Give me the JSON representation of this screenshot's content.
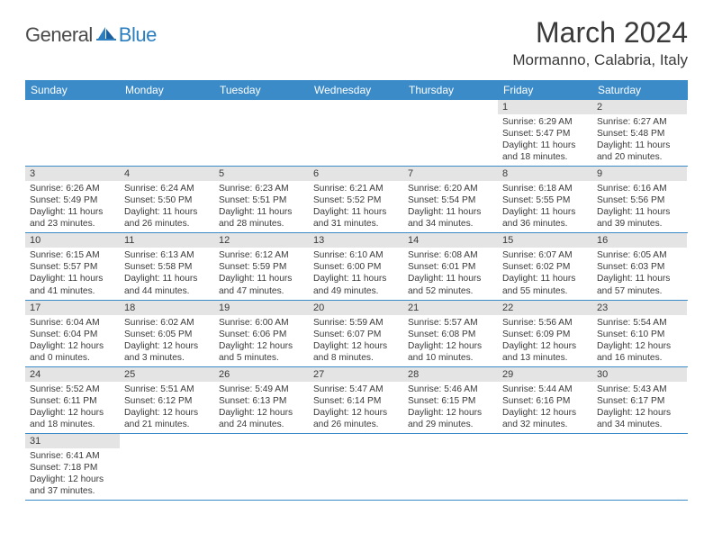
{
  "logo": {
    "general": "General",
    "blue": "Blue"
  },
  "title": "March 2024",
  "location": "Mormanno, Calabria, Italy",
  "colors": {
    "headerBar": "#3b8bc9",
    "headerText": "#ffffff",
    "dayNumBg": "#e4e4e4",
    "bodyText": "#3a3a3a",
    "logoBlue": "#2b7fc0",
    "logoGray": "#4a4a4a"
  },
  "dayNames": [
    "Sunday",
    "Monday",
    "Tuesday",
    "Wednesday",
    "Thursday",
    "Friday",
    "Saturday"
  ],
  "weeks": [
    [
      null,
      null,
      null,
      null,
      null,
      {
        "n": 1,
        "sunrise": "6:29 AM",
        "sunset": "5:47 PM",
        "daylight": "11 hours and 18 minutes."
      },
      {
        "n": 2,
        "sunrise": "6:27 AM",
        "sunset": "5:48 PM",
        "daylight": "11 hours and 20 minutes."
      }
    ],
    [
      {
        "n": 3,
        "sunrise": "6:26 AM",
        "sunset": "5:49 PM",
        "daylight": "11 hours and 23 minutes."
      },
      {
        "n": 4,
        "sunrise": "6:24 AM",
        "sunset": "5:50 PM",
        "daylight": "11 hours and 26 minutes."
      },
      {
        "n": 5,
        "sunrise": "6:23 AM",
        "sunset": "5:51 PM",
        "daylight": "11 hours and 28 minutes."
      },
      {
        "n": 6,
        "sunrise": "6:21 AM",
        "sunset": "5:52 PM",
        "daylight": "11 hours and 31 minutes."
      },
      {
        "n": 7,
        "sunrise": "6:20 AM",
        "sunset": "5:54 PM",
        "daylight": "11 hours and 34 minutes."
      },
      {
        "n": 8,
        "sunrise": "6:18 AM",
        "sunset": "5:55 PM",
        "daylight": "11 hours and 36 minutes."
      },
      {
        "n": 9,
        "sunrise": "6:16 AM",
        "sunset": "5:56 PM",
        "daylight": "11 hours and 39 minutes."
      }
    ],
    [
      {
        "n": 10,
        "sunrise": "6:15 AM",
        "sunset": "5:57 PM",
        "daylight": "11 hours and 41 minutes."
      },
      {
        "n": 11,
        "sunrise": "6:13 AM",
        "sunset": "5:58 PM",
        "daylight": "11 hours and 44 minutes."
      },
      {
        "n": 12,
        "sunrise": "6:12 AM",
        "sunset": "5:59 PM",
        "daylight": "11 hours and 47 minutes."
      },
      {
        "n": 13,
        "sunrise": "6:10 AM",
        "sunset": "6:00 PM",
        "daylight": "11 hours and 49 minutes."
      },
      {
        "n": 14,
        "sunrise": "6:08 AM",
        "sunset": "6:01 PM",
        "daylight": "11 hours and 52 minutes."
      },
      {
        "n": 15,
        "sunrise": "6:07 AM",
        "sunset": "6:02 PM",
        "daylight": "11 hours and 55 minutes."
      },
      {
        "n": 16,
        "sunrise": "6:05 AM",
        "sunset": "6:03 PM",
        "daylight": "11 hours and 57 minutes."
      }
    ],
    [
      {
        "n": 17,
        "sunrise": "6:04 AM",
        "sunset": "6:04 PM",
        "daylight": "12 hours and 0 minutes."
      },
      {
        "n": 18,
        "sunrise": "6:02 AM",
        "sunset": "6:05 PM",
        "daylight": "12 hours and 3 minutes."
      },
      {
        "n": 19,
        "sunrise": "6:00 AM",
        "sunset": "6:06 PM",
        "daylight": "12 hours and 5 minutes."
      },
      {
        "n": 20,
        "sunrise": "5:59 AM",
        "sunset": "6:07 PM",
        "daylight": "12 hours and 8 minutes."
      },
      {
        "n": 21,
        "sunrise": "5:57 AM",
        "sunset": "6:08 PM",
        "daylight": "12 hours and 10 minutes."
      },
      {
        "n": 22,
        "sunrise": "5:56 AM",
        "sunset": "6:09 PM",
        "daylight": "12 hours and 13 minutes."
      },
      {
        "n": 23,
        "sunrise": "5:54 AM",
        "sunset": "6:10 PM",
        "daylight": "12 hours and 16 minutes."
      }
    ],
    [
      {
        "n": 24,
        "sunrise": "5:52 AM",
        "sunset": "6:11 PM",
        "daylight": "12 hours and 18 minutes."
      },
      {
        "n": 25,
        "sunrise": "5:51 AM",
        "sunset": "6:12 PM",
        "daylight": "12 hours and 21 minutes."
      },
      {
        "n": 26,
        "sunrise": "5:49 AM",
        "sunset": "6:13 PM",
        "daylight": "12 hours and 24 minutes."
      },
      {
        "n": 27,
        "sunrise": "5:47 AM",
        "sunset": "6:14 PM",
        "daylight": "12 hours and 26 minutes."
      },
      {
        "n": 28,
        "sunrise": "5:46 AM",
        "sunset": "6:15 PM",
        "daylight": "12 hours and 29 minutes."
      },
      {
        "n": 29,
        "sunrise": "5:44 AM",
        "sunset": "6:16 PM",
        "daylight": "12 hours and 32 minutes."
      },
      {
        "n": 30,
        "sunrise": "5:43 AM",
        "sunset": "6:17 PM",
        "daylight": "12 hours and 34 minutes."
      }
    ],
    [
      {
        "n": 31,
        "sunrise": "6:41 AM",
        "sunset": "7:18 PM",
        "daylight": "12 hours and 37 minutes."
      },
      null,
      null,
      null,
      null,
      null,
      null
    ]
  ],
  "labels": {
    "sunrise": "Sunrise:",
    "sunset": "Sunset:",
    "daylight": "Daylight:"
  }
}
